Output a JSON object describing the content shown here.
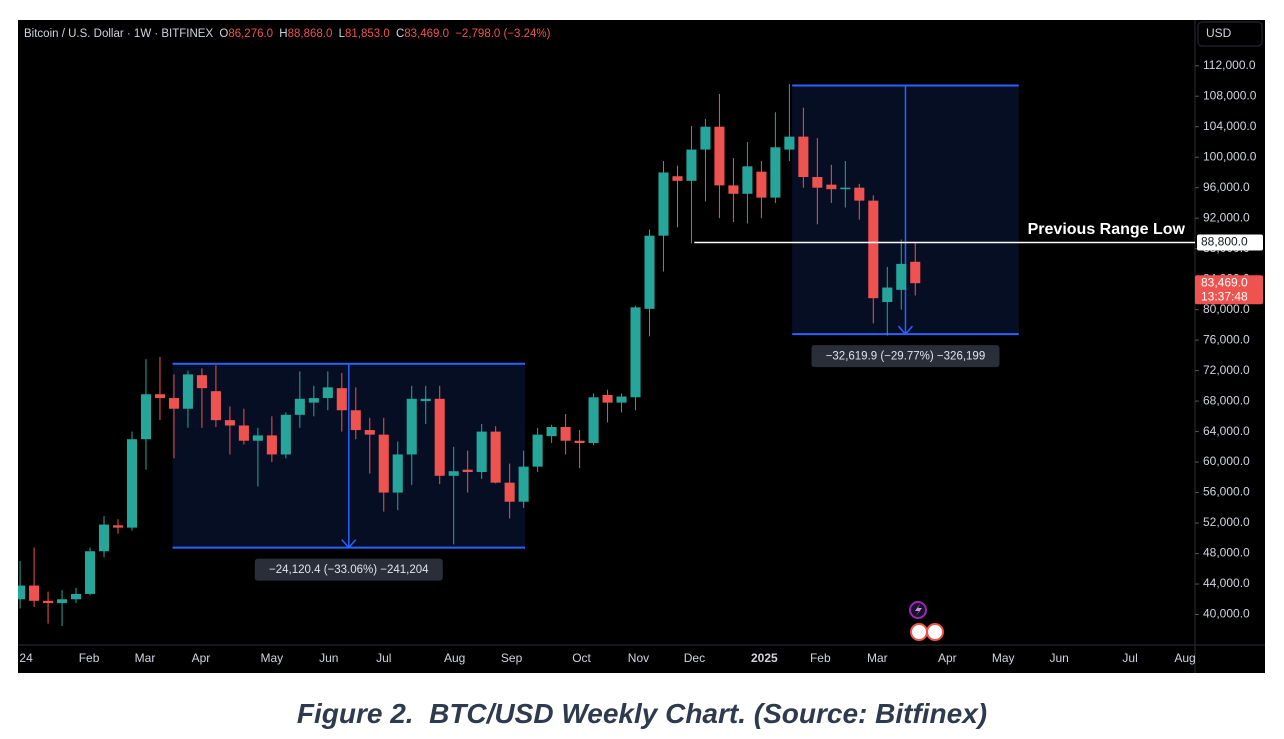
{
  "chart_data": {
    "type": "candlestick",
    "header": {
      "symbol": "Bitcoin / U.S. Dollar · 1W · BITFINEX",
      "o": "O",
      "open": "86,276.0",
      "h": "H",
      "high": "88,868.0",
      "l": "L",
      "low": "81,853.0",
      "c": "C",
      "close": "83,469.0",
      "change": "−2,798.0 (−3.24%)"
    },
    "currency": "USD",
    "open": [
      42000,
      43800,
      41800,
      41500,
      42000,
      42700,
      48300,
      51700,
      51400,
      63000,
      68900,
      68400,
      67000,
      71400,
      69300,
      65500,
      64800,
      62800,
      63500,
      61000,
      66200,
      67800,
      68400,
      69700,
      66800,
      64200,
      63600,
      56000,
      61000,
      68000,
      68300,
      58200,
      59000,
      58700,
      64000,
      57300,
      54800,
      59400,
      63400,
      64600,
      62800,
      62500,
      68800,
      67800,
      68500,
      80100,
      89700,
      97500,
      96900,
      101000,
      104000,
      96300,
      95200,
      98100,
      94700,
      101000,
      102700,
      97400,
      96400,
      95800,
      96000,
      94300,
      81000,
      82600,
      86276
    ],
    "high": [
      47000,
      48800,
      43000,
      43200,
      43500,
      48800,
      52900,
      52500,
      64000,
      73500,
      73800,
      71500,
      72000,
      72300,
      72700,
      67300,
      67000,
      64500,
      66000,
      66500,
      71900,
      70000,
      71900,
      71700,
      69800,
      65800,
      65800,
      62700,
      70000,
      70000,
      70000,
      62000,
      61500,
      65000,
      64700,
      59800,
      61500,
      64500,
      64900,
      66300,
      64200,
      69000,
      69500,
      69000,
      80500,
      90500,
      99500,
      98900,
      104100,
      105000,
      108300,
      99900,
      102000,
      99500,
      105900,
      109600,
      106500,
      102500,
      99000,
      99500,
      96500,
      95000,
      85600,
      89200,
      88868
    ],
    "low": [
      40800,
      41000,
      38800,
      38500,
      41500,
      42500,
      47500,
      50600,
      51000,
      59000,
      65500,
      60500,
      64500,
      64500,
      64600,
      61000,
      62300,
      56800,
      60000,
      60500,
      64500,
      66000,
      66800,
      64000,
      63000,
      58500,
      53500,
      53700,
      57000,
      65000,
      57100,
      49200,
      56000,
      57800,
      57200,
      52600,
      54000,
      58700,
      62500,
      61000,
      59200,
      62200,
      65200,
      66500,
      66800,
      76500,
      85000,
      90800,
      88700,
      94200,
      92000,
      91500,
      91300,
      92000,
      94000,
      99500,
      96000,
      91200,
      94000,
      93400,
      91800,
      78200,
      76600,
      80000,
      81853
    ],
    "close": [
      43800,
      41800,
      41500,
      42000,
      42700,
      48300,
      51800,
      51400,
      63000,
      68900,
      68400,
      67000,
      71500,
      69700,
      65500,
      64800,
      62800,
      63500,
      61000,
      66200,
      68300,
      68400,
      69800,
      66800,
      64200,
      63600,
      56000,
      61000,
      68300,
      68300,
      58200,
      58800,
      58700,
      64000,
      57300,
      54800,
      59400,
      63600,
      64600,
      62800,
      62500,
      68500,
      67800,
      68600,
      80300,
      89700,
      98000,
      96900,
      101000,
      104000,
      96300,
      95200,
      98800,
      94700,
      101300,
      102700,
      97400,
      96000,
      95800,
      96000,
      94300,
      81500,
      82900,
      86000,
      83469
    ],
    "up_color": "#26a69a",
    "down_color": "#ef5350",
    "xlim": [
      -0.15,
      84
    ],
    "xticks": [
      {
        "value": 0.43,
        "label": "24"
      },
      {
        "value": 4.93,
        "label": "Feb"
      },
      {
        "value": 8.93,
        "label": "Mar"
      },
      {
        "value": 12.93,
        "label": "Apr"
      },
      {
        "value": 18,
        "label": "May"
      },
      {
        "value": 22.07,
        "label": "Jun"
      },
      {
        "value": 26,
        "label": "Jul"
      },
      {
        "value": 31.07,
        "label": "Aug"
      },
      {
        "value": 35.14,
        "label": "Sep"
      },
      {
        "value": 40.14,
        "label": "Oct"
      },
      {
        "value": 44.21,
        "label": "Nov"
      },
      {
        "value": 48.21,
        "label": "Dec"
      },
      {
        "value": 53.21,
        "label": "2025"
      },
      {
        "value": 57.21,
        "label": "Feb"
      },
      {
        "value": 61.29,
        "label": "Mar"
      },
      {
        "value": 66.29,
        "label": "Apr"
      },
      {
        "value": 70.29,
        "label": "May"
      },
      {
        "value": 74.29,
        "label": "Jun"
      },
      {
        "value": 79.36,
        "label": "Jul"
      },
      {
        "value": 83.29,
        "label": "Aug"
      }
    ],
    "ylim": [
      36000,
      118000
    ],
    "yticks": [
      {
        "value": 40000,
        "label": "40,000.0"
      },
      {
        "value": 44000,
        "label": "44,000.0"
      },
      {
        "value": 48000,
        "label": "48,000.0"
      },
      {
        "value": 52000,
        "label": "52,000.0"
      },
      {
        "value": 56000,
        "label": "56,000.0"
      },
      {
        "value": 60000,
        "label": "60,000.0"
      },
      {
        "value": 64000,
        "label": "64,000.0"
      },
      {
        "value": 68000,
        "label": "68,000.0"
      },
      {
        "value": 72000,
        "label": "72,000.0"
      },
      {
        "value": 76000,
        "label": "76,000.0"
      },
      {
        "value": 80000,
        "label": "80,000.0"
      },
      {
        "value": 84000,
        "label": "84,000.0"
      },
      {
        "value": 88000,
        "label": "88,000.0"
      },
      {
        "value": 92000,
        "label": "92,000.0"
      },
      {
        "value": 96000,
        "label": "96,000.0"
      },
      {
        "value": 100000,
        "label": "100,000.0"
      },
      {
        "value": 104000,
        "label": "104,000.0"
      },
      {
        "value": 108000,
        "label": "108,000.0"
      },
      {
        "value": 112000,
        "label": "112,000.0"
      }
    ],
    "grid": false,
    "ranges": [
      {
        "start": 10.9,
        "end": 36.1,
        "high": 72900,
        "low": 48779.6,
        "label": "−24,120.4 (−33.06%) −241,204"
      },
      {
        "start": 55.2,
        "end": 71.4,
        "high": 109400,
        "low": 76780.1,
        "label": "−32,619.9 (−29.77%) −326,199"
      }
    ],
    "level": {
      "value": 88800,
      "start": 48.2,
      "text": "Previous Range Low",
      "label": "88,800.0"
    },
    "last_price": {
      "value": 83469,
      "label": "83,469.0",
      "countdown": "13:37:48"
    }
  },
  "caption": "Figure 2.  BTC/USD Weekly Chart. (Source: Bitfinex)"
}
